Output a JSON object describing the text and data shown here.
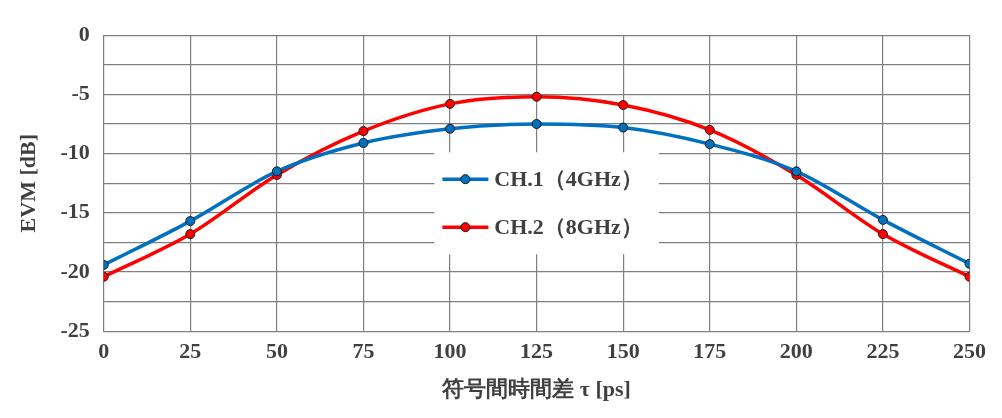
{
  "chart_data": {
    "type": "line",
    "xlabel": "符号間時間差 τ [ps]",
    "ylabel": "EVM [dB]",
    "x": [
      0,
      25,
      50,
      75,
      100,
      125,
      150,
      175,
      200,
      225,
      250
    ],
    "series": [
      {
        "name": "CH.1（4GHz）",
        "color": "#0070c0",
        "values": [
          -19.4,
          -15.7,
          -11.5,
          -9.1,
          -7.9,
          -7.5,
          -7.8,
          -9.2,
          -11.5,
          -15.6,
          -19.3
        ]
      },
      {
        "name": "CH.2（8GHz）",
        "color": "#ff0000",
        "values": [
          -20.4,
          -16.8,
          -11.8,
          -8.1,
          -5.8,
          -5.2,
          -5.9,
          -8.0,
          -11.8,
          -16.8,
          -20.4
        ]
      }
    ],
    "xlim": [
      0,
      250
    ],
    "xticks": [
      0,
      25,
      50,
      75,
      100,
      125,
      150,
      175,
      200,
      225,
      250
    ],
    "ylim": [
      -25,
      0
    ],
    "yticks": [
      -25,
      {
        "value": -22.5,
        "label": null
      },
      -20,
      {
        "value": -17.5,
        "label": null
      },
      -15,
      {
        "value": -12.5,
        "label": null
      },
      -10,
      {
        "value": -7.5,
        "label": null
      },
      -5,
      {
        "value": -2.5,
        "label": null
      },
      0
    ],
    "grid": true,
    "legend": "center",
    "marker": "circle",
    "line_style": "solid"
  }
}
